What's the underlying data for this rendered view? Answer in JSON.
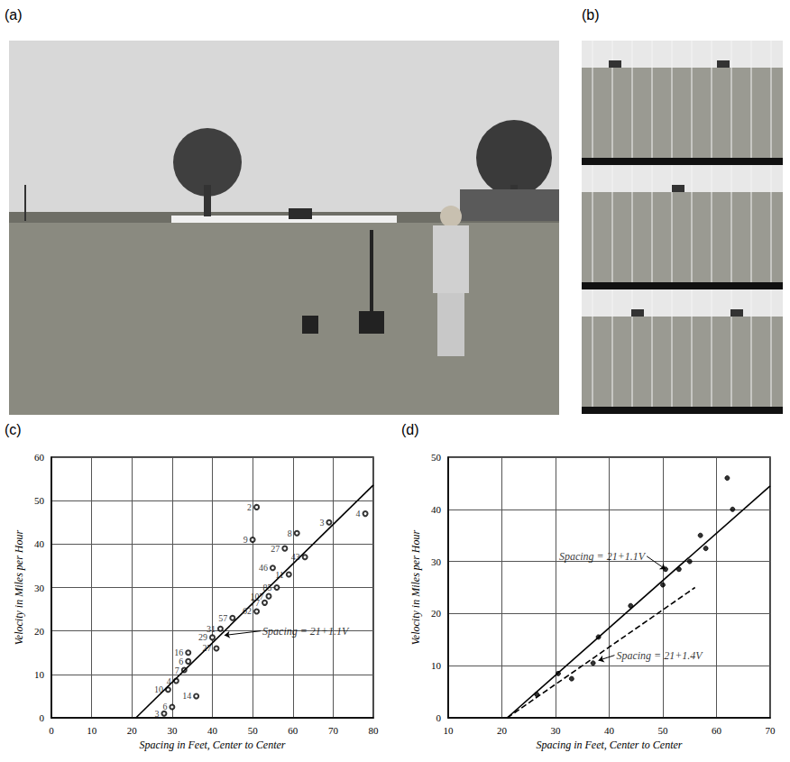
{
  "panel_labels": [
    "(a)",
    "(b)",
    "(c)",
    "(d)"
  ],
  "chart_data": [
    {
      "type": "scatter",
      "x_label": "Spacing in Feet, Center to Center",
      "y_label": "Velocity in Miles per Hour",
      "xlim": [
        0,
        80
      ],
      "xticks": [
        0,
        10,
        20,
        30,
        40,
        50,
        60,
        70,
        80
      ],
      "ylim": [
        0,
        60
      ],
      "yticks": [
        0,
        10,
        20,
        30,
        40,
        50,
        60
      ],
      "grid": true,
      "series": [
        {
          "type": "scatter",
          "marker": "open_circle",
          "color": "#000000",
          "x": [
            51,
            50,
            61,
            69,
            78,
            58,
            63,
            55,
            59,
            56,
            54,
            53,
            51,
            45,
            42,
            40,
            41,
            34,
            34,
            33,
            31,
            29,
            36,
            30,
            28
          ],
          "y": [
            48.5,
            41,
            42.5,
            45,
            47,
            39,
            37,
            34.5,
            33,
            30,
            28,
            26.5,
            24.5,
            23,
            20.5,
            18.5,
            16,
            15,
            13,
            11,
            8.5,
            6.5,
            5,
            2.5,
            1
          ],
          "point_labels": [
            "2",
            "9",
            "8",
            "3",
            "4",
            "27",
            "43",
            "46",
            "11",
            "85",
            "107",
            "77",
            "62",
            "57",
            "31",
            "29",
            "27",
            "16",
            "6",
            "7",
            "4",
            "10",
            "14",
            "6",
            "3"
          ]
        },
        {
          "type": "line",
          "line_style": "solid",
          "color": "#000000",
          "x": [
            21,
            80
          ],
          "y": [
            0,
            53.6
          ]
        }
      ],
      "annotations": [
        {
          "text": "Spacing = 21+1.1V",
          "x": 52,
          "y": 20,
          "arrow_to": [
            43,
            19
          ]
        }
      ]
    },
    {
      "type": "scatter",
      "x_label": "Spacing in Feet, Center to Center",
      "y_label": "Velocity in Miles per Hour",
      "xlim": [
        10,
        70
      ],
      "xticks": [
        10,
        20,
        30,
        40,
        50,
        60,
        70
      ],
      "ylim": [
        0,
        50
      ],
      "yticks": [
        0,
        10,
        20,
        30,
        40,
        50
      ],
      "grid": true,
      "series": [
        {
          "type": "scatter",
          "marker": "circle",
          "color": "#000000",
          "x": [
            26.5,
            30.5,
            33,
            37,
            38,
            44,
            50,
            50.5,
            53,
            55,
            57,
            58,
            63,
            62
          ],
          "y": [
            4.5,
            8.5,
            7.5,
            10.5,
            15.5,
            21.5,
            25.5,
            28.5,
            28.5,
            30,
            35,
            32.5,
            40,
            46
          ]
        },
        {
          "type": "line",
          "line_style": "solid",
          "color": "#000000",
          "x": [
            21,
            70
          ],
          "y": [
            0,
            44.5
          ]
        },
        {
          "type": "line",
          "line_style": "dashed",
          "color": "#000000",
          "x": [
            21,
            56
          ],
          "y": [
            0,
            25
          ]
        }
      ],
      "annotations": [
        {
          "text": "Spacing = 21+1.1V",
          "x": 47,
          "y": 31,
          "arrow_to": [
            50.5,
            28.5
          ]
        },
        {
          "text": "Spacing = 21+1.4V",
          "x": 41,
          "y": 12,
          "arrow_to": [
            38,
            11
          ]
        }
      ]
    }
  ]
}
